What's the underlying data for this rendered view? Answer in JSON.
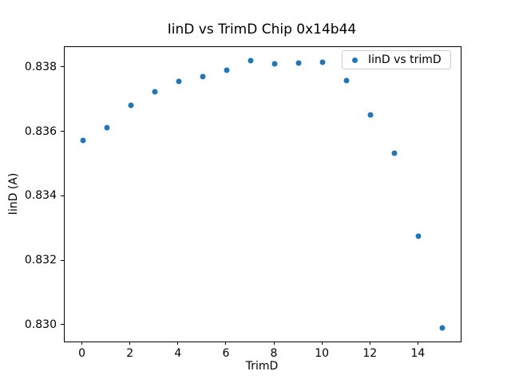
{
  "chart_data": {
    "type": "scatter",
    "title": "IinD vs TrimD Chip 0x14b44",
    "xlabel": "TrimD",
    "ylabel": "IinD (A)",
    "grid": false,
    "xlim": [
      -0.75,
      15.75
    ],
    "ylim": [
      0.8295,
      0.83864
    ],
    "x_ticks": [
      0,
      2,
      4,
      6,
      8,
      10,
      12,
      14
    ],
    "y_ticks": [
      0.83,
      0.832,
      0.834,
      0.836,
      0.838
    ],
    "legend": {
      "label": "IinD vs trimD",
      "position": "upper right"
    },
    "series": [
      {
        "name": "IinD vs trimD",
        "marker": "circle",
        "color": "#1f77b4",
        "x": [
          0,
          1,
          2,
          3,
          4,
          5,
          6,
          7,
          8,
          9,
          10,
          11,
          12,
          13,
          14,
          15
        ],
        "y": [
          0.83575,
          0.83615,
          0.83684,
          0.83725,
          0.83757,
          0.83773,
          0.83793,
          0.83823,
          0.83811,
          0.83814,
          0.83817,
          0.83759,
          0.83653,
          0.83535,
          0.83278,
          0.82992
        ]
      }
    ]
  }
}
